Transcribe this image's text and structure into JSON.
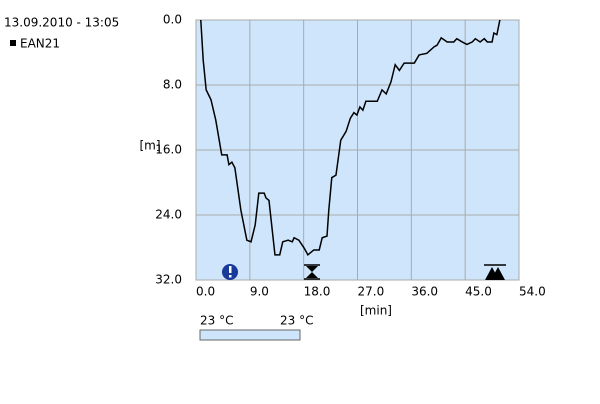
{
  "chart_data": {
    "type": "line",
    "timestamp": "13.09.2010 - 13:05",
    "x_label": "[min]",
    "y_label": "[m]",
    "series": [
      {
        "name": "EAN21",
        "color": "#000000",
        "x": [
          0.8,
          1.2,
          1.7,
          2.5,
          3.3,
          4.3,
          5.2,
          5.5,
          6.0,
          6.5,
          7.5,
          8.5,
          9.2,
          9.9,
          10.5,
          11.4,
          11.7,
          12.2,
          13.2,
          14.0,
          14.5,
          15.4,
          16.1,
          16.4,
          17.2,
          18.1,
          18.7,
          19.7,
          20.6,
          21.1,
          21.9,
          22.2,
          22.7,
          23.4,
          24.2,
          25.1,
          25.8,
          26.4,
          26.9,
          27.4,
          27.9,
          28.4,
          30.3,
          31.1,
          31.8,
          32.6,
          33.3,
          34.0,
          34.8,
          36.5,
          37.3,
          38.6,
          39.8,
          40.3,
          41.0,
          42.0,
          43.1,
          43.6,
          44.5,
          45.3,
          46.2,
          46.7,
          47.5,
          48.2,
          48.7,
          49.5,
          49.8,
          50.3,
          50.8
        ],
        "values": [
          0,
          4.9,
          8.6,
          9.8,
          12.3,
          16.6,
          16.6,
          17.8,
          17.5,
          18.2,
          23.4,
          27.1,
          27.3,
          25.2,
          21.3,
          21.3,
          21.9,
          22.2,
          28.9,
          28.9,
          27.3,
          27.1,
          27.3,
          26.8,
          27.1,
          28.1,
          28.9,
          28.3,
          28.3,
          26.8,
          26.6,
          23.4,
          19.4,
          19.1,
          14.8,
          13.7,
          12.1,
          11.4,
          11.7,
          10.7,
          11.1,
          10.0,
          10.0,
          8.6,
          9.1,
          7.6,
          5.5,
          6.2,
          5.3,
          5.3,
          4.3,
          4.1,
          3.3,
          3.1,
          2.2,
          2.7,
          2.7,
          2.3,
          2.7,
          3.0,
          2.7,
          2.3,
          2.7,
          2.3,
          2.7,
          2.7,
          1.6,
          1.8,
          0
        ]
      }
    ],
    "xlim": [
      0,
      54
    ],
    "xticks": [
      {
        "value": 0,
        "label": "0.0"
      },
      {
        "value": 9,
        "label": "9.0"
      },
      {
        "value": 18,
        "label": "18.0"
      },
      {
        "value": 27,
        "label": "27.0"
      },
      {
        "value": 36,
        "label": "36.0"
      },
      {
        "value": 45,
        "label": "45.0"
      },
      {
        "value": 54,
        "label": "54.0"
      }
    ],
    "ylim": [
      0,
      32
    ],
    "invert_y": true,
    "yticks": [
      {
        "value": 0,
        "label": "0.0"
      },
      {
        "value": 8,
        "label": "8.0"
      },
      {
        "value": 16,
        "label": "16.0"
      },
      {
        "value": 24,
        "label": "24.0"
      },
      {
        "value": 32,
        "label": "32.0"
      }
    ],
    "grid": true,
    "temperature_scale": [
      "23 °C",
      "23 °C"
    ]
  }
}
